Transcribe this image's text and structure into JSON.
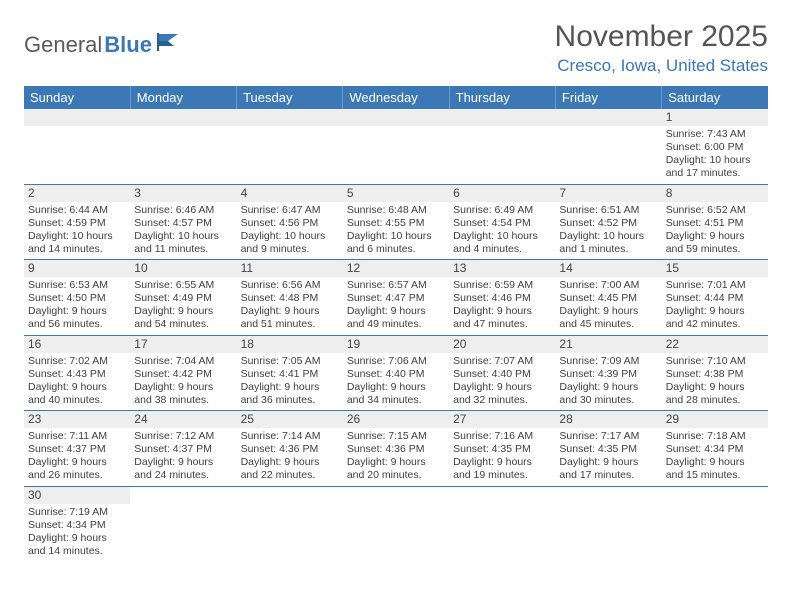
{
  "logo": {
    "text1": "General",
    "text2": "Blue",
    "accent_color": "#3b78b5",
    "text_color": "#5a5a5a"
  },
  "title": "November 2025",
  "location": "Cresco, Iowa, United States",
  "header_bg": "#3b78b5",
  "header_fg": "#ffffff",
  "row_divider": "#3b78b5",
  "daynum_bg": "#eeeeee",
  "body_font_size": 10.5,
  "weekdays": [
    "Sunday",
    "Monday",
    "Tuesday",
    "Wednesday",
    "Thursday",
    "Friday",
    "Saturday"
  ],
  "weeks": [
    [
      null,
      null,
      null,
      null,
      null,
      null,
      {
        "n": "1",
        "sunrise": "7:43 AM",
        "sunset": "6:00 PM",
        "day_h": "10",
        "day_m": "17"
      }
    ],
    [
      {
        "n": "2",
        "sunrise": "6:44 AM",
        "sunset": "4:59 PM",
        "day_h": "10",
        "day_m": "14"
      },
      {
        "n": "3",
        "sunrise": "6:46 AM",
        "sunset": "4:57 PM",
        "day_h": "10",
        "day_m": "11"
      },
      {
        "n": "4",
        "sunrise": "6:47 AM",
        "sunset": "4:56 PM",
        "day_h": "10",
        "day_m": "9"
      },
      {
        "n": "5",
        "sunrise": "6:48 AM",
        "sunset": "4:55 PM",
        "day_h": "10",
        "day_m": "6"
      },
      {
        "n": "6",
        "sunrise": "6:49 AM",
        "sunset": "4:54 PM",
        "day_h": "10",
        "day_m": "4"
      },
      {
        "n": "7",
        "sunrise": "6:51 AM",
        "sunset": "4:52 PM",
        "day_h": "10",
        "day_m": "1"
      },
      {
        "n": "8",
        "sunrise": "6:52 AM",
        "sunset": "4:51 PM",
        "day_h": "9",
        "day_m": "59"
      }
    ],
    [
      {
        "n": "9",
        "sunrise": "6:53 AM",
        "sunset": "4:50 PM",
        "day_h": "9",
        "day_m": "56"
      },
      {
        "n": "10",
        "sunrise": "6:55 AM",
        "sunset": "4:49 PM",
        "day_h": "9",
        "day_m": "54"
      },
      {
        "n": "11",
        "sunrise": "6:56 AM",
        "sunset": "4:48 PM",
        "day_h": "9",
        "day_m": "51"
      },
      {
        "n": "12",
        "sunrise": "6:57 AM",
        "sunset": "4:47 PM",
        "day_h": "9",
        "day_m": "49"
      },
      {
        "n": "13",
        "sunrise": "6:59 AM",
        "sunset": "4:46 PM",
        "day_h": "9",
        "day_m": "47"
      },
      {
        "n": "14",
        "sunrise": "7:00 AM",
        "sunset": "4:45 PM",
        "day_h": "9",
        "day_m": "45"
      },
      {
        "n": "15",
        "sunrise": "7:01 AM",
        "sunset": "4:44 PM",
        "day_h": "9",
        "day_m": "42"
      }
    ],
    [
      {
        "n": "16",
        "sunrise": "7:02 AM",
        "sunset": "4:43 PM",
        "day_h": "9",
        "day_m": "40"
      },
      {
        "n": "17",
        "sunrise": "7:04 AM",
        "sunset": "4:42 PM",
        "day_h": "9",
        "day_m": "38"
      },
      {
        "n": "18",
        "sunrise": "7:05 AM",
        "sunset": "4:41 PM",
        "day_h": "9",
        "day_m": "36"
      },
      {
        "n": "19",
        "sunrise": "7:06 AM",
        "sunset": "4:40 PM",
        "day_h": "9",
        "day_m": "34"
      },
      {
        "n": "20",
        "sunrise": "7:07 AM",
        "sunset": "4:40 PM",
        "day_h": "9",
        "day_m": "32"
      },
      {
        "n": "21",
        "sunrise": "7:09 AM",
        "sunset": "4:39 PM",
        "day_h": "9",
        "day_m": "30"
      },
      {
        "n": "22",
        "sunrise": "7:10 AM",
        "sunset": "4:38 PM",
        "day_h": "9",
        "day_m": "28"
      }
    ],
    [
      {
        "n": "23",
        "sunrise": "7:11 AM",
        "sunset": "4:37 PM",
        "day_h": "9",
        "day_m": "26"
      },
      {
        "n": "24",
        "sunrise": "7:12 AM",
        "sunset": "4:37 PM",
        "day_h": "9",
        "day_m": "24"
      },
      {
        "n": "25",
        "sunrise": "7:14 AM",
        "sunset": "4:36 PM",
        "day_h": "9",
        "day_m": "22"
      },
      {
        "n": "26",
        "sunrise": "7:15 AM",
        "sunset": "4:36 PM",
        "day_h": "9",
        "day_m": "20"
      },
      {
        "n": "27",
        "sunrise": "7:16 AM",
        "sunset": "4:35 PM",
        "day_h": "9",
        "day_m": "19"
      },
      {
        "n": "28",
        "sunrise": "7:17 AM",
        "sunset": "4:35 PM",
        "day_h": "9",
        "day_m": "17"
      },
      {
        "n": "29",
        "sunrise": "7:18 AM",
        "sunset": "4:34 PM",
        "day_h": "9",
        "day_m": "15"
      }
    ],
    [
      {
        "n": "30",
        "sunrise": "7:19 AM",
        "sunset": "4:34 PM",
        "day_h": "9",
        "day_m": "14"
      },
      null,
      null,
      null,
      null,
      null,
      null
    ]
  ],
  "labels": {
    "sunrise": "Sunrise:",
    "sunset": "Sunset:",
    "daylight_prefix": "Daylight:",
    "hours_word": "hours",
    "and_word": "and",
    "minutes_suffix": "minutes."
  }
}
